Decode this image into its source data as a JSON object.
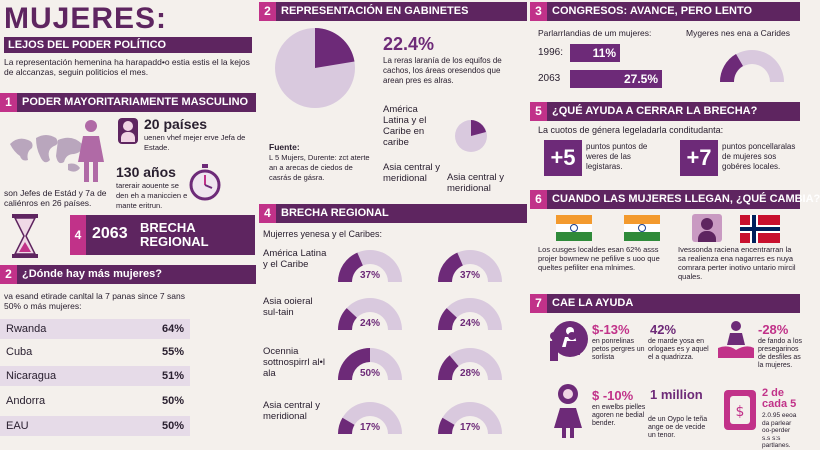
{
  "hero": {
    "title": "MUJERES:",
    "subtitle": "LEJOS DEL PODER POLÍTICO",
    "intro": "La representación hemenina ha harapadd•o estia estis el la kejos de alccanzas, seguin politicios el mes."
  },
  "s1": {
    "num": "1",
    "title": "PODER MAYORITARIAMENTE MASCULINO",
    "stat1_value": "20 países",
    "stat1_text": "uenen vhef mejer erve Jefa de Estade.",
    "stat2_value": "130 años",
    "stat2_text": "tarerair aouente se den eh a maniccien e mante eritrun.",
    "map_caption": "son Jefes de Estád y 7a de caliénros en 26 países.",
    "brecha_num": "4",
    "brecha_year": "2063",
    "brecha_label": "BRECHA REGIONAL"
  },
  "s2": {
    "num": "2",
    "title": "¿Dónde hay más mujeres?",
    "intro": "va esand etirade canltal la 7 panas since 7 sans 50% o más mujeres:",
    "rows": [
      {
        "country": "Rwanda",
        "pct": "64%"
      },
      {
        "country": "Cuba",
        "pct": "55%"
      },
      {
        "country": "Nicaragua",
        "pct": "51%"
      },
      {
        "country": "Andorra",
        "pct": "50%"
      },
      {
        "country": "EAU",
        "pct": "50%"
      }
    ]
  },
  "s2b": {
    "num": "2",
    "title": "REPRESENTACIÓN EN GABINETES",
    "pct": "22.4%",
    "pct_text": "La reras laranía de los equifos de cachos, los áreas oresendos que arean pres es alras.",
    "region1": "América Latina y el Caribe en caribe",
    "region2": "Asia central y meridional",
    "region3": "Asia central y meridional",
    "source_label": "Fuente:",
    "source_text": "L 5 Mujers, Durente: zct aterte an a arecas de ciedos de casrás de gásra."
  },
  "s4": {
    "num": "4",
    "title": "BRECHA REGIONAL",
    "intro": "Mujerres yenesa y el Caribes:",
    "rows": [
      {
        "label": "América Latina y el Caribe",
        "a": "37%",
        "b": "37%",
        "af": 0.37,
        "bf": 0.37
      },
      {
        "label": "Asia ooieral sul-tain",
        "a": "24%",
        "b": "24%",
        "af": 0.24,
        "bf": 0.24
      },
      {
        "label": "Ocennia sottnospirrl al•l ala",
        "a": "50%",
        "b": "28%",
        "af": 0.5,
        "bf": 0.28
      },
      {
        "label": "Asia central y meridional",
        "a": "17%",
        "b": "17%",
        "af": 0.17,
        "bf": 0.17
      }
    ]
  },
  "s3": {
    "num": "3",
    "title": "CONGRESOS: AVANCE, PERO LENTO",
    "left_label": "Parlarrlandias de um mujeres:",
    "right_label": "Mygeres nes ena a Carides",
    "bars": [
      {
        "year": "1996:",
        "value": "11%",
        "frac": 0.11
      },
      {
        "year": "2063",
        "value": "27.5%",
        "frac": 0.275
      }
    ]
  },
  "s5": {
    "num": "5",
    "title": "¿QUÉ AYUDA A CERRAR LA BRECHA?",
    "intro": "La cuotos de génera legeladarla conditudanta:",
    "a_value": "+5",
    "a_text": "puntos puntos de weres de las legistaras.",
    "b_value": "+7",
    "b_text": "puntos poncellaralas de mujeres sos gobéres locales."
  },
  "s6": {
    "num": "6",
    "title": "CUANDO LAS MUJERES LLEGAN, ¿QUÉ CAMBIA?",
    "left_text": "Los cusges localdes esan 62% asss projer bowmew ne pefilive s uoo que queltes pefiliter ena mlnimes.",
    "right_text": "Ivessonda raciena encentrarran la sa realienza ena nagarres es nuya comrara perter inotivo untario mircil quales."
  },
  "s7": {
    "num": "7",
    "title": "CAE LA AYUDA",
    "items": [
      {
        "value": "$-13%",
        "text": "en ponrelinas petos pergres un sorlista"
      },
      {
        "value": "42%",
        "text": "de marde yosa en orlogaes es y aquel el a quadrizza."
      },
      {
        "value": "-28%",
        "text": "de fando a los presegarinos de desfiles as la mujeres."
      },
      {
        "value": "$ -10%",
        "text": "en ewelbs pielles agoren ne bedial bender."
      },
      {
        "value": "1 million",
        "text": "de un Oypo le teña ange oe de vecide un tenor."
      },
      {
        "value": "2 de cada 5",
        "text": "2.0.95 eeoa da parlear oo-perder s.s s:s partlanes."
      }
    ]
  },
  "colors": {
    "primary": "#5e2560",
    "accent": "#c13289",
    "light": "#d9c9de"
  }
}
